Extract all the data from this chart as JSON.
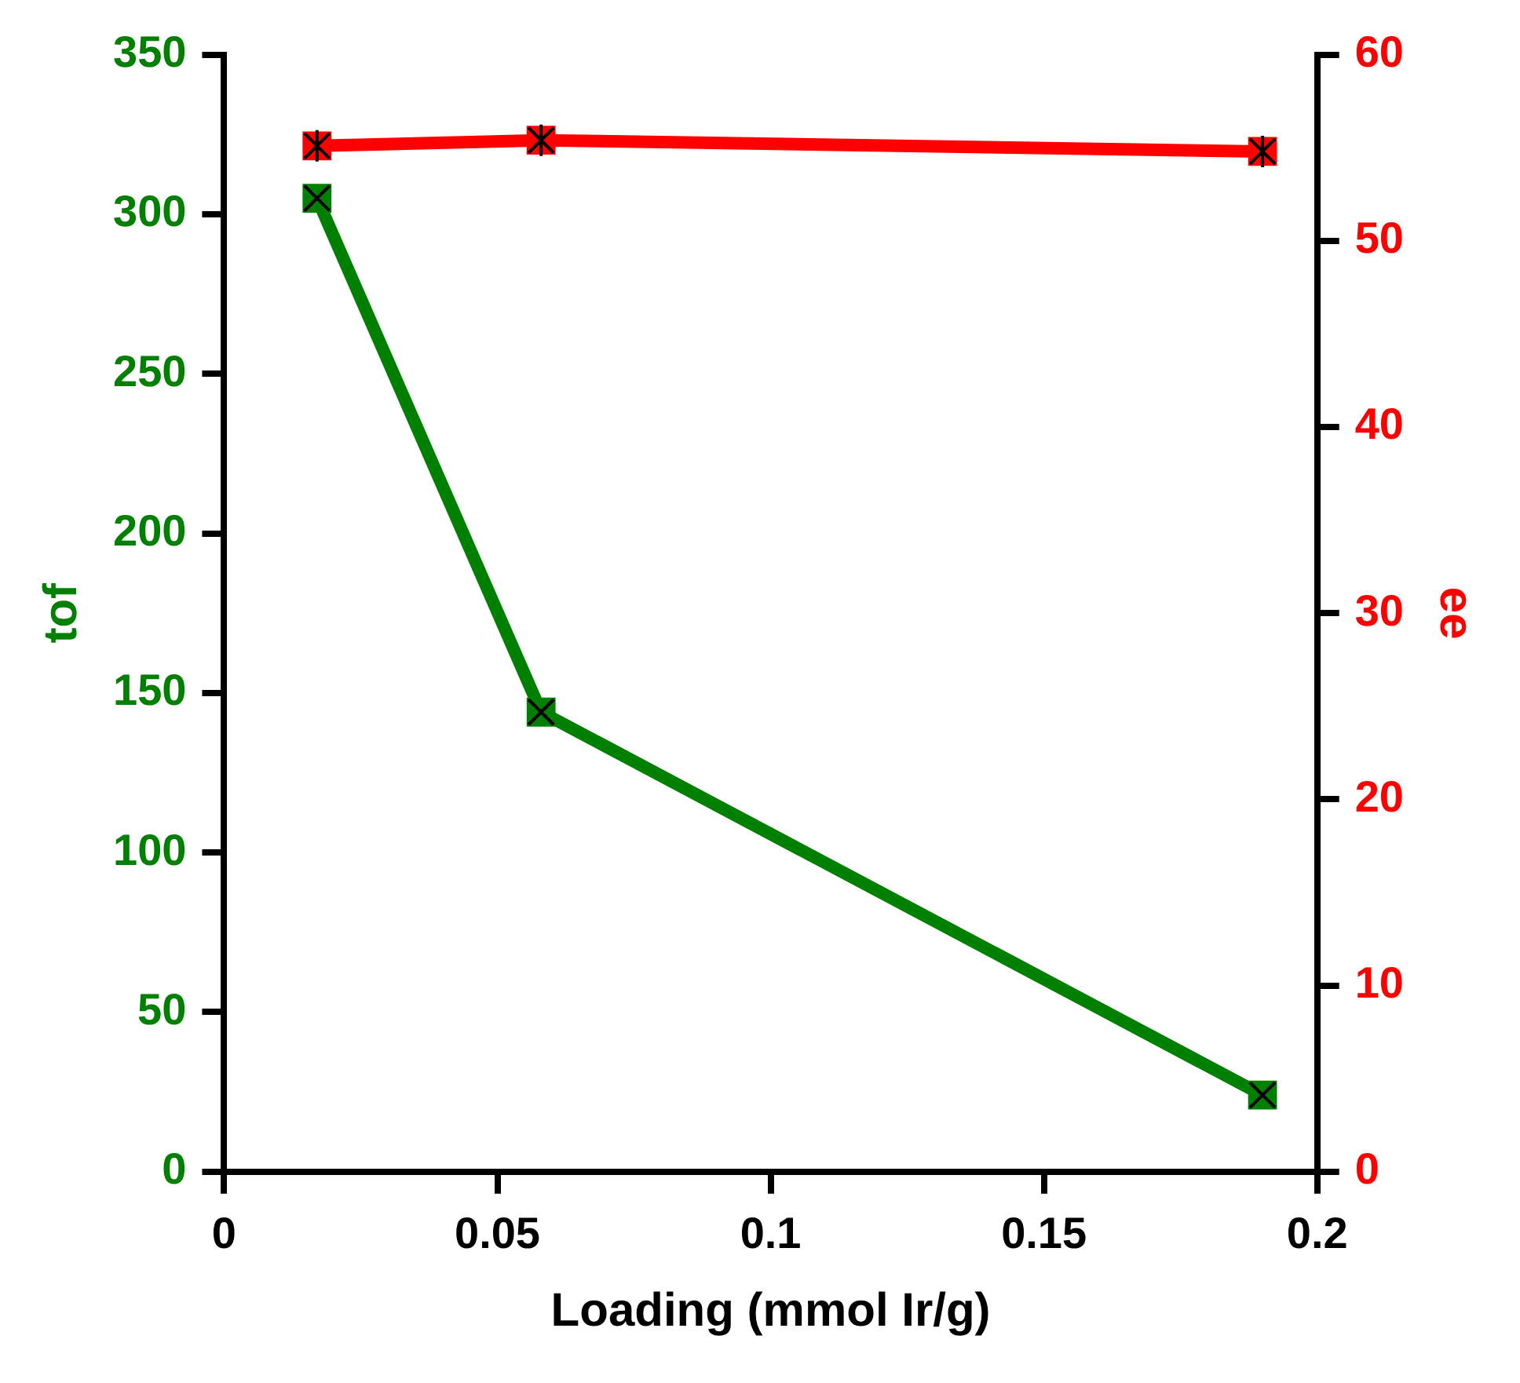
{
  "chart_data": {
    "type": "line",
    "xlabel": "Loading (mmol Ir/g)",
    "ylabel": "tof",
    "y2label": "ee",
    "x": [
      0.017,
      0.058,
      0.19
    ],
    "series": [
      {
        "color": "#008000",
        "values": [
          305,
          144,
          24
        ]
      },
      {
        "color": "#ff0000",
        "values": [
          55.1,
          55.4,
          54.8
        ],
        "axis": "y2"
      }
    ],
    "xlim": [
      0,
      0.2
    ],
    "xticks": [
      0,
      0.05,
      0.1,
      0.15,
      0.2
    ],
    "ylim": [
      0,
      350
    ],
    "yticks": [
      0,
      50,
      100,
      150,
      200,
      250,
      300,
      350
    ],
    "y2lim": [
      0,
      60
    ],
    "y2ticks": [
      0,
      10,
      20,
      30,
      40,
      50,
      60
    ],
    "grid": false,
    "legend": false,
    "marker": "square",
    "line_style": "solid"
  }
}
